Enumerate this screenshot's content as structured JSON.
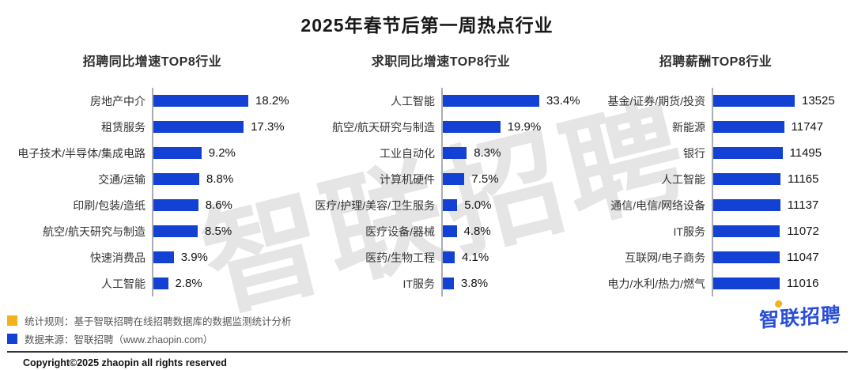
{
  "title": "2025年春节后第一周热点行业",
  "watermark": {
    "text": "智联招聘"
  },
  "logo": {
    "text": "智联招聘"
  },
  "colors": {
    "bar_blue": "#1341d4",
    "legend_yellow": "#f3b11d",
    "legend_blue": "#1341d4",
    "logo_blue": "#2a4ed6"
  },
  "chart_data": [
    {
      "type": "bar",
      "orientation": "horizontal",
      "title": "招聘同比增速TOP8行业",
      "categories": [
        "房地产中介",
        "租赁服务",
        "电子技术/半导体/集成电路",
        "交通/运输",
        "印刷/包装/造纸",
        "航空/航天研究与制造",
        "快速消费品",
        "人工智能"
      ],
      "values": [
        18.2,
        17.3,
        9.2,
        8.8,
        8.6,
        8.5,
        3.9,
        2.8
      ],
      "value_labels": [
        "18.2%",
        "17.3%",
        "9.2%",
        "8.8%",
        "8.6%",
        "8.5%",
        "3.9%",
        "2.8%"
      ],
      "unit": "percent",
      "xlim": [
        0,
        18.2
      ],
      "grid": false,
      "legend": false
    },
    {
      "type": "bar",
      "orientation": "horizontal",
      "title": "求职同比增速TOP8行业",
      "categories": [
        "人工智能",
        "航空/航天研究与制造",
        "工业自动化",
        "计算机硬件",
        "医疗/护理/美容/卫生服务",
        "医疗设备/器械",
        "医药/生物工程",
        "IT服务"
      ],
      "values": [
        33.4,
        19.9,
        8.3,
        7.5,
        5.0,
        4.8,
        4.1,
        3.8
      ],
      "value_labels": [
        "33.4%",
        "19.9%",
        "8.3%",
        "7.5%",
        "5.0%",
        "4.8%",
        "4.1%",
        "3.8%"
      ],
      "unit": "percent",
      "xlim": [
        0,
        33.4
      ],
      "grid": false,
      "legend": false
    },
    {
      "type": "bar",
      "orientation": "horizontal",
      "title": "招聘薪酬TOP8行业",
      "categories": [
        "基金/证券/期货/投资",
        "新能源",
        "银行",
        "人工智能",
        "通信/电信/网络设备",
        "IT服务",
        "互联网/电子商务",
        "电力/水利/热力/燃气"
      ],
      "values": [
        13525,
        11747,
        11495,
        11165,
        11137,
        11072,
        11047,
        11016
      ],
      "value_labels": [
        "13525",
        "11747",
        "11495",
        "11165",
        "11137",
        "11072",
        "11047",
        "11016"
      ],
      "unit": "yuan",
      "xlim": [
        0,
        13525
      ],
      "grid": false,
      "legend": false
    }
  ],
  "footer": {
    "note1": "统计规则：基于智联招聘在线招聘数据库的数据监测统计分析",
    "note2": "数据来源：智联招聘（www.zhaopin.com）",
    "copyright": "Copyright©2025 zhaopin all rights reserved"
  }
}
